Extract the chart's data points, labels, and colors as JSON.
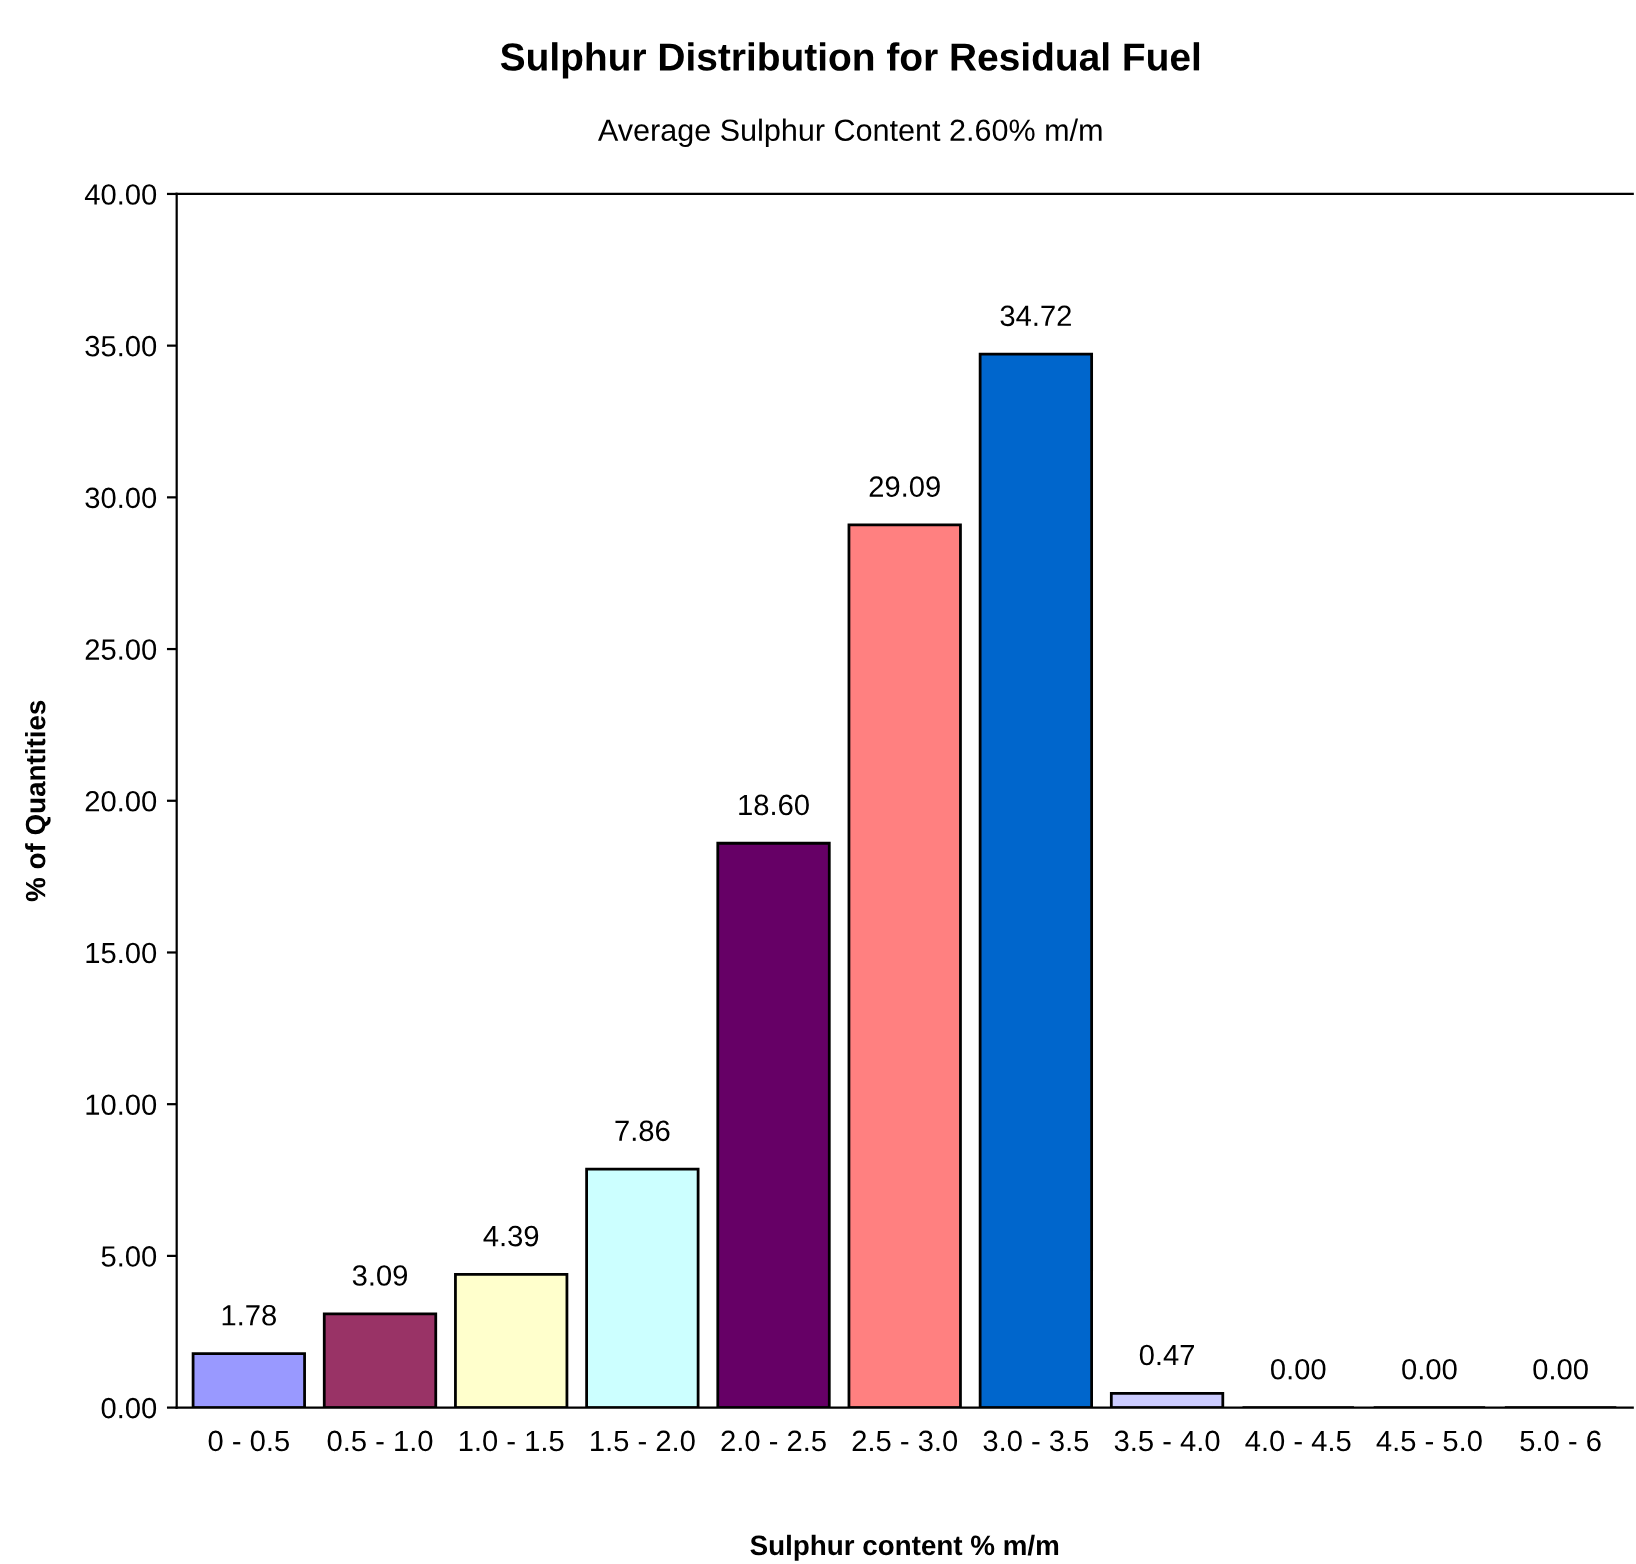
{
  "chart_data": {
    "type": "bar",
    "title": "Sulphur Distribution for Residual Fuel",
    "subtitle": "Average Sulphur Content 2.60% m/m",
    "xlabel": "Sulphur content % m/m",
    "ylabel": "% of Quantities",
    "categories": [
      "0 - 0.5",
      "0.5 - 1.0",
      "1.0 - 1.5",
      "1.5 - 2.0",
      "2.0 - 2.5",
      "2.5 - 3.0",
      "3.0 - 3.5",
      "3.5 - 4.0",
      "4.0 - 4.5",
      "4.5 - 5.0",
      "5.0 - 6"
    ],
    "values": [
      1.78,
      3.09,
      4.39,
      7.86,
      18.6,
      29.09,
      34.72,
      0.47,
      0,
      0,
      0
    ],
    "value_labels": [
      "1.78",
      "3.09",
      "4.39",
      "7.86",
      "18.60",
      "29.09",
      "34.72",
      "0.47",
      "0.00",
      "0.00",
      "0.00"
    ],
    "colors": [
      "#9999ff",
      "#993366",
      "#ffffcc",
      "#ccffff",
      "#660066",
      "#ff8080",
      "#0066cc",
      "#ccccff",
      "#000000",
      "#000000",
      "#000000"
    ],
    "ylim": [
      0,
      40
    ],
    "yticks": [
      {
        "value": 0,
        "label": "0.00"
      },
      {
        "value": 5,
        "label": "5.00"
      },
      {
        "value": 10,
        "label": "10.00"
      },
      {
        "value": 15,
        "label": "15.00"
      },
      {
        "value": 20,
        "label": "20.00"
      },
      {
        "value": 25,
        "label": "25.00"
      },
      {
        "value": 30,
        "label": "30.00"
      },
      {
        "value": 35,
        "label": "35.00"
      },
      {
        "value": 40,
        "label": "40.00"
      }
    ],
    "grid": false,
    "legend": false
  }
}
